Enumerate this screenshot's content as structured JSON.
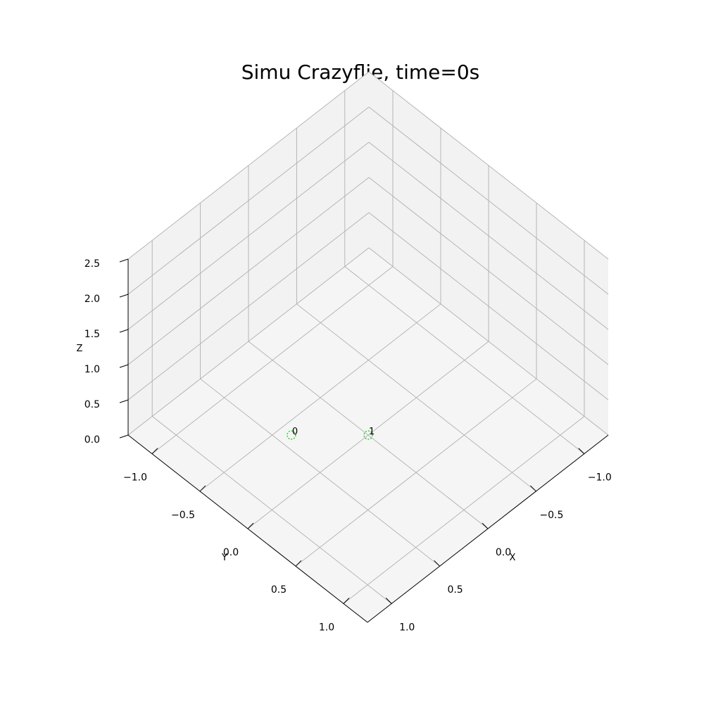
{
  "chart_data": {
    "type": "scatter",
    "projection": "3d",
    "title": "Simu Crazyflie, time=0s",
    "xlabel": "X",
    "ylabel": "Y",
    "zlabel": "Z",
    "xlim": [
      -1.25,
      1.25
    ],
    "ylim": [
      -1.25,
      1.25
    ],
    "zlim": [
      0,
      2.5
    ],
    "xticks": [
      "−1.0",
      "−0.5",
      "0.0",
      "0.5",
      "1.0"
    ],
    "yticks": [
      "−1.0",
      "−0.5",
      "0.0",
      "0.5",
      "1.0"
    ],
    "zticks": [
      "0.0",
      "0.5",
      "1.0",
      "1.5",
      "2.0",
      "2.5"
    ],
    "grid": true,
    "colors": {
      "pane": "#f2f2f2",
      "pane_floor": "#f5f5f5",
      "grid": "#b0b0b0",
      "marker": "#00cc00"
    },
    "points": [
      {
        "label": "0",
        "x": 0.4,
        "y": -0.4,
        "z": 0.0
      },
      {
        "label": "1",
        "x": 0.0,
        "y": 0.0,
        "z": 0.0
      }
    ]
  }
}
